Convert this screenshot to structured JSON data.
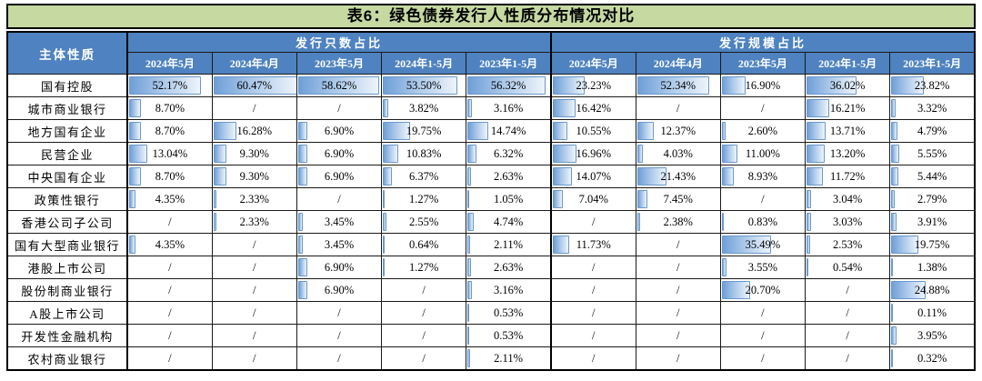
{
  "title": "表6：绿色债券发行人性质分布情况对比",
  "table": {
    "corner_header": "主体性质",
    "groups": [
      {
        "label": "发行只数占比",
        "key": "count_pct"
      },
      {
        "label": "发行规模占比",
        "key": "scale_pct"
      }
    ],
    "periods": [
      "2024年5月",
      "2024年4月",
      "2023年5月",
      "2024年1-5月",
      "2023年1-5月"
    ],
    "null_marker": "/"
  },
  "colors": {
    "title_bg": "#c6d9a1",
    "header_bg": "#4e82c0",
    "header_text": "#ffffff",
    "bar_fill_start": "#6f9fd8",
    "bar_fill_end": "#edf4fb",
    "bar_border": "#6a99cc"
  },
  "chart_data": {
    "type": "table",
    "title": "表6：绿色债券发行人性质分布情况对比",
    "column_groups": [
      "发行只数占比",
      "发行规模占比"
    ],
    "periods": [
      "2024年5月",
      "2024年4月",
      "2023年5月",
      "2024年1-5月",
      "2023年1-5月"
    ],
    "value_unit": "%",
    "null_marker": "/",
    "databar_scale_max": 60.47,
    "rows": [
      {
        "entity": "国有控股",
        "count_pct": [
          52.17,
          60.47,
          58.62,
          53.5,
          56.32
        ],
        "scale_pct": [
          23.23,
          52.34,
          16.9,
          36.02,
          23.82
        ]
      },
      {
        "entity": "城市商业银行",
        "count_pct": [
          8.7,
          null,
          null,
          3.82,
          3.16
        ],
        "scale_pct": [
          16.42,
          null,
          null,
          16.21,
          3.32
        ]
      },
      {
        "entity": "地方国有企业",
        "count_pct": [
          8.7,
          16.28,
          6.9,
          19.75,
          14.74
        ],
        "scale_pct": [
          10.55,
          12.37,
          2.6,
          13.71,
          4.79
        ]
      },
      {
        "entity": "民营企业",
        "count_pct": [
          13.04,
          9.3,
          6.9,
          10.83,
          6.32
        ],
        "scale_pct": [
          16.96,
          4.03,
          11.0,
          13.2,
          5.55
        ]
      },
      {
        "entity": "中央国有企业",
        "count_pct": [
          8.7,
          9.3,
          6.9,
          6.37,
          2.63
        ],
        "scale_pct": [
          14.07,
          21.43,
          8.93,
          11.72,
          5.44
        ]
      },
      {
        "entity": "政策性银行",
        "count_pct": [
          4.35,
          2.33,
          null,
          1.27,
          1.05
        ],
        "scale_pct": [
          7.04,
          7.45,
          null,
          3.04,
          2.79
        ]
      },
      {
        "entity": "香港公司子公司",
        "count_pct": [
          null,
          2.33,
          3.45,
          2.55,
          4.74
        ],
        "scale_pct": [
          null,
          2.38,
          0.83,
          3.03,
          3.91
        ]
      },
      {
        "entity": "国有大型商业银行",
        "count_pct": [
          4.35,
          null,
          3.45,
          0.64,
          2.11
        ],
        "scale_pct": [
          11.73,
          null,
          35.49,
          2.53,
          19.75
        ]
      },
      {
        "entity": "港股上市公司",
        "count_pct": [
          null,
          null,
          6.9,
          1.27,
          2.63
        ],
        "scale_pct": [
          null,
          null,
          3.55,
          0.54,
          1.38
        ]
      },
      {
        "entity": "股份制商业银行",
        "count_pct": [
          null,
          null,
          6.9,
          null,
          3.16
        ],
        "scale_pct": [
          null,
          null,
          20.7,
          null,
          24.88
        ]
      },
      {
        "entity": "A股上市公司",
        "count_pct": [
          null,
          null,
          null,
          null,
          0.53
        ],
        "scale_pct": [
          null,
          null,
          null,
          null,
          0.11
        ]
      },
      {
        "entity": "开发性金融机构",
        "count_pct": [
          null,
          null,
          null,
          null,
          0.53
        ],
        "scale_pct": [
          null,
          null,
          null,
          null,
          3.95
        ]
      },
      {
        "entity": "农村商业银行",
        "count_pct": [
          null,
          null,
          null,
          null,
          2.11
        ],
        "scale_pct": [
          null,
          null,
          null,
          null,
          0.32
        ]
      }
    ]
  }
}
